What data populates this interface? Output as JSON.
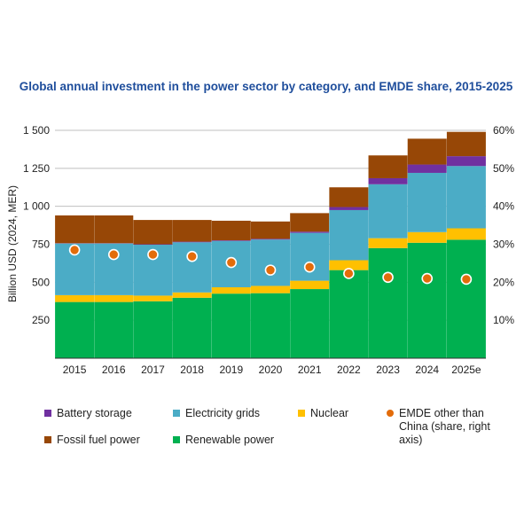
{
  "chart_data": {
    "type": "bar",
    "stacked": true,
    "title": "Global annual investment in the power sector by category, and EMDE share, 2015-2025",
    "ylabel": "Billion USD (2024, MER)",
    "ylim": [
      0,
      1500
    ],
    "yticks": [
      250,
      500,
      750,
      1000,
      1250,
      1500
    ],
    "ytick_labels": [
      "250",
      "500",
      "750",
      "1 000",
      "1 250",
      "1 500"
    ],
    "y2lim": [
      0,
      0.6
    ],
    "y2ticks": [
      0.1,
      0.2,
      0.3,
      0.4,
      0.5,
      0.6
    ],
    "y2tick_labels": [
      "10%",
      "20%",
      "30%",
      "40%",
      "50%",
      "60%"
    ],
    "categories": [
      "2015",
      "2016",
      "2017",
      "2018",
      "2019",
      "2020",
      "2021",
      "2022",
      "2023",
      "2024",
      "2025e"
    ],
    "series": [
      {
        "name": "Renewable power",
        "color": "#00b050",
        "values": [
          370,
          370,
          375,
          398,
          425,
          428,
          455,
          580,
          725,
          760,
          780
        ]
      },
      {
        "name": "Nuclear",
        "color": "#ffc000",
        "values": [
          45,
          45,
          37,
          35,
          42,
          48,
          55,
          65,
          65,
          70,
          75
        ]
      },
      {
        "name": "Electricity grids",
        "color": "#4bacc6",
        "values": [
          340,
          340,
          335,
          330,
          305,
          305,
          315,
          330,
          355,
          390,
          410
        ]
      },
      {
        "name": "Battery storage",
        "color": "#7030a0",
        "values": [
          2,
          2,
          3,
          4,
          4,
          5,
          8,
          20,
          40,
          55,
          65
        ]
      },
      {
        "name": "Fossil fuel power",
        "color": "#974706",
        "values": [
          183,
          183,
          160,
          143,
          129,
          114,
          122,
          130,
          150,
          170,
          160
        ]
      }
    ],
    "line_series": {
      "name": "EMDE other than China (share, right axis)",
      "color": "#e36c0a",
      "axis": "right",
      "values": [
        0.285,
        0.273,
        0.273,
        0.268,
        0.252,
        0.232,
        0.24,
        0.223,
        0.213,
        0.21,
        0.208
      ]
    },
    "legend": {
      "placement": "bottom",
      "items": [
        {
          "label": "Battery storage",
          "color": "#7030a0",
          "marker": "square"
        },
        {
          "label": "Electricity grids",
          "color": "#4bacc6",
          "marker": "square"
        },
        {
          "label": "Nuclear",
          "color": "#ffc000",
          "marker": "square"
        },
        {
          "label": "EMDE other than China (share, right axis)",
          "color": "#e36c0a",
          "marker": "circle",
          "lines": [
            "EMDE other than",
            "China (share, right",
            "axis)"
          ]
        },
        {
          "label": "Fossil fuel power",
          "color": "#974706",
          "marker": "square"
        },
        {
          "label": "Renewable power",
          "color": "#00b050",
          "marker": "square"
        }
      ]
    },
    "title_color": "#1f4e9c",
    "gridlines": true
  }
}
